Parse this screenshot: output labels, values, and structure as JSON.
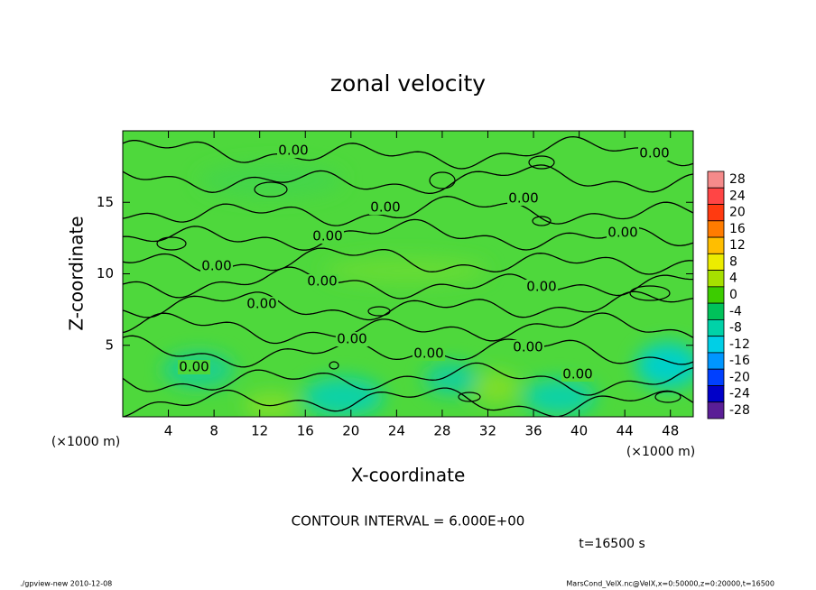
{
  "chart_data": {
    "type": "contour",
    "title": "zonal velocity",
    "xlabel": "X-coordinate",
    "ylabel": "Z-coordinate",
    "x_unit_label": "(×1000 m)",
    "xlim": [
      0,
      50
    ],
    "xticks": [
      4,
      8,
      12,
      16,
      20,
      24,
      28,
      32,
      36,
      40,
      44,
      48
    ],
    "ylim": [
      0,
      20
    ],
    "yticks": [
      5,
      10,
      15
    ],
    "contour_labels": [
      "0.00",
      "0.00",
      "0.00",
      "0.00",
      "0.00",
      "0.00",
      "0.00",
      "0.00",
      "0.00",
      "0.00",
      "0.00",
      "0.00",
      "0.00",
      "0.00",
      "0.00"
    ],
    "colorbar": {
      "levels": [
        28,
        24,
        20,
        16,
        12,
        8,
        4,
        0,
        -4,
        -8,
        -12,
        -16,
        -20,
        -24,
        -28
      ],
      "colors": [
        "#f58a8a",
        "#ff4545",
        "#ff3a10",
        "#ff7c00",
        "#ffbe00",
        "#ecec00",
        "#a6e000",
        "#3ccc00",
        "#00c25a",
        "#00d2a8",
        "#00cfe6",
        "#0096ff",
        "#0040ff",
        "#0000c8",
        "#5a1e96"
      ]
    },
    "contour_interval": "CONTOUR INTERVAL = 6.000E+00",
    "time_label": "t=16500 s",
    "footer_left": "./gpview-new   2010-12-08",
    "footer_right": "MarsCond_VelX.nc@VelX,x=0:50000,z=0:20000,t=16500"
  }
}
